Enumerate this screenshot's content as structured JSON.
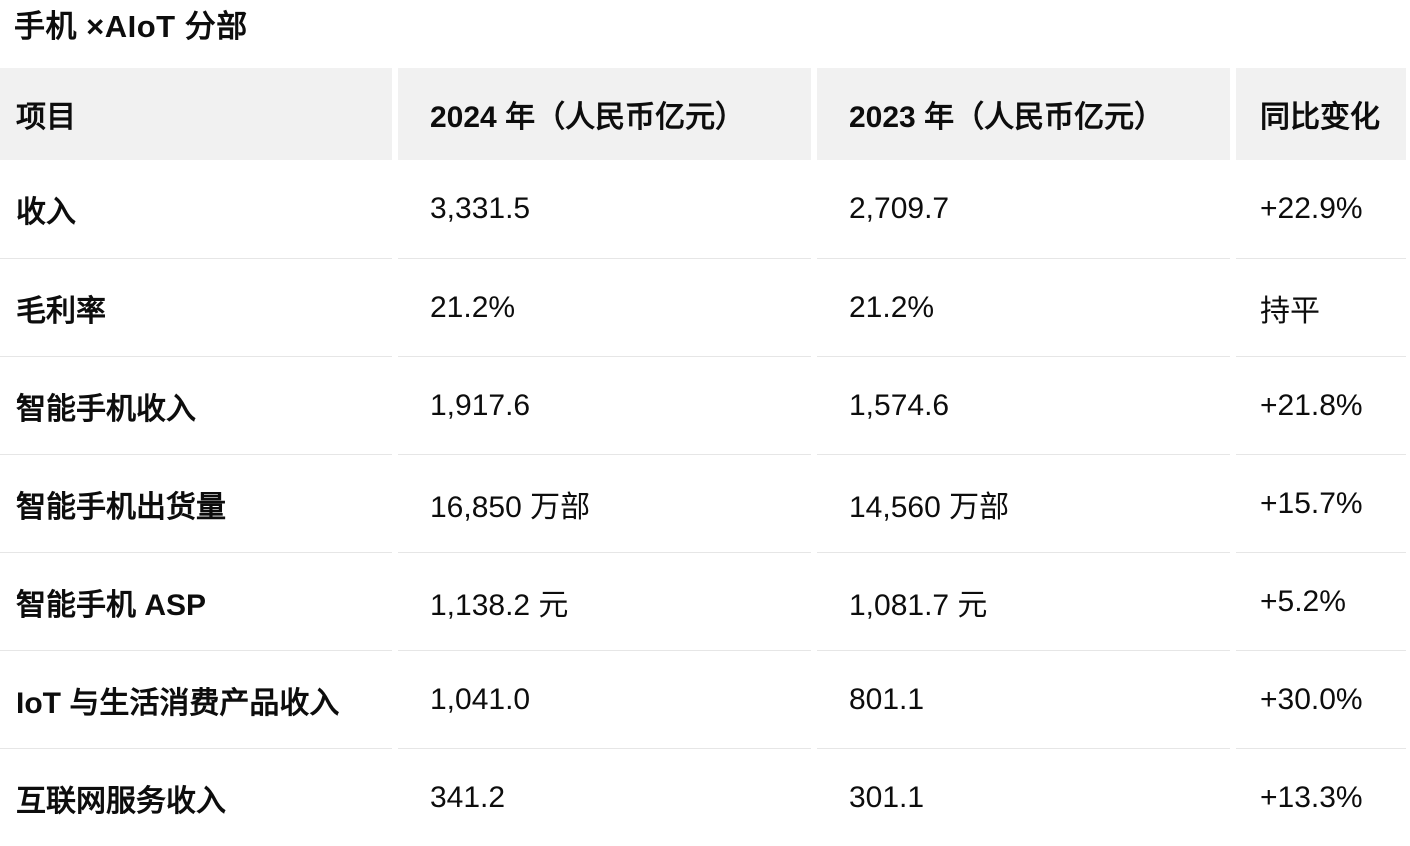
{
  "page": {
    "title": "手机 ×AIoT 分部"
  },
  "table": {
    "columns": [
      "项目",
      "2024 年（人民币亿元）",
      "2023 年（人民币亿元）",
      "同比变化"
    ],
    "rows": [
      {
        "label": "收入",
        "y2024": "3,331.5",
        "y2023": "2,709.7",
        "yoy": "+22.9%"
      },
      {
        "label": "毛利率",
        "y2024": "21.2%",
        "y2023": "21.2%",
        "yoy": "持平"
      },
      {
        "label": "智能手机收入",
        "y2024": "1,917.6",
        "y2023": "1,574.6",
        "yoy": "+21.8%"
      },
      {
        "label": "智能手机出货量",
        "y2024": "16,850 万部",
        "y2023": "14,560 万部",
        "yoy": "+15.7%"
      },
      {
        "label": "智能手机 ASP",
        "y2024": "1,138.2 元",
        "y2023": "1,081.7 元",
        "yoy": "+5.2%"
      },
      {
        "label": "IoT 与生活消费产品收入",
        "y2024": "1,041.0",
        "y2023": "801.1",
        "yoy": "+30.0%"
      },
      {
        "label": "互联网服务收入",
        "y2024": "341.2",
        "y2023": "301.1",
        "yoy": "+13.3%"
      }
    ]
  },
  "colors": {
    "text": "#0d0d0d",
    "header_background": "#f1f1f1",
    "row_divider": "#e6e6e6",
    "page_background": "#ffffff"
  }
}
